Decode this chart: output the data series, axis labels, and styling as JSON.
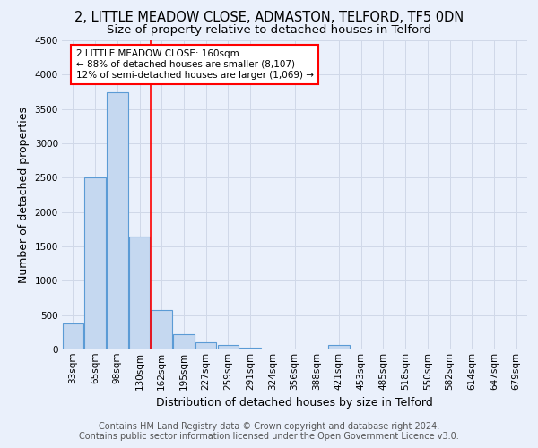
{
  "title": "2, LITTLE MEADOW CLOSE, ADMASTON, TELFORD, TF5 0DN",
  "subtitle": "Size of property relative to detached houses in Telford",
  "xlabel": "Distribution of detached houses by size in Telford",
  "ylabel": "Number of detached properties",
  "categories": [
    "33sqm",
    "65sqm",
    "98sqm",
    "130sqm",
    "162sqm",
    "195sqm",
    "227sqm",
    "259sqm",
    "291sqm",
    "324sqm",
    "356sqm",
    "388sqm",
    "421sqm",
    "453sqm",
    "485sqm",
    "518sqm",
    "550sqm",
    "582sqm",
    "614sqm",
    "647sqm",
    "679sqm"
  ],
  "bar_heights": [
    375,
    2500,
    3750,
    1650,
    575,
    225,
    100,
    60,
    30,
    5,
    0,
    0,
    60,
    0,
    0,
    0,
    0,
    0,
    0,
    0,
    0
  ],
  "bar_color": "#c5d8f0",
  "bar_edge_color": "#5b9bd5",
  "red_line_index": 3.5,
  "annotation_text": "2 LITTLE MEADOW CLOSE: 160sqm\n← 88% of detached houses are smaller (8,107)\n12% of semi-detached houses are larger (1,069) →",
  "annotation_box_color": "white",
  "annotation_box_edge_color": "red",
  "ylim": [
    0,
    4500
  ],
  "yticks": [
    0,
    500,
    1000,
    1500,
    2000,
    2500,
    3000,
    3500,
    4000,
    4500
  ],
  "footer": "Contains HM Land Registry data © Crown copyright and database right 2024.\nContains public sector information licensed under the Open Government Licence v3.0.",
  "bg_color": "#eaf0fb",
  "grid_color": "#d0d8e8",
  "title_fontsize": 10.5,
  "subtitle_fontsize": 9.5,
  "axis_label_fontsize": 9,
  "tick_fontsize": 7.5,
  "footer_fontsize": 7
}
